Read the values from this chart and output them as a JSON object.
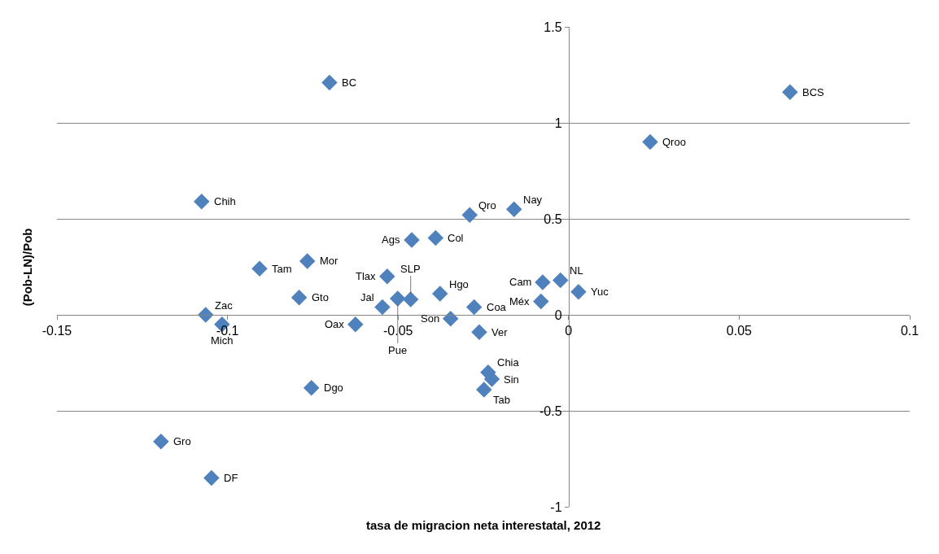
{
  "chart_data": {
    "type": "scatter",
    "xlabel": "tasa de migracion neta interestatal, 2012",
    "ylabel": "(Pob-LN)/Pob",
    "xlim": [
      -0.15,
      0.1
    ],
    "xticks": [
      -0.15,
      -0.1,
      -0.05,
      0,
      0.05,
      0.1
    ],
    "ylim": [
      -1,
      1.5
    ],
    "yticks": [
      -1,
      -0.5,
      0,
      0.5,
      1,
      1.5
    ],
    "grid": "y",
    "legend": false,
    "marker": "diamond",
    "series": [
      {
        "name": "BC",
        "color": "#4f81bd",
        "x": [
          -0.0701
        ],
        "values": [
          1.21
        ]
      },
      {
        "name": "BCS",
        "color": "#4f81bd",
        "x": [
          0.0649
        ],
        "values": [
          1.16
        ]
      },
      {
        "name": "Qroo",
        "color": "#4f81bd",
        "x": [
          0.0239
        ],
        "values": [
          0.9
        ]
      },
      {
        "name": "Chih",
        "color": "#4f81bd",
        "x": [
          -0.1076
        ],
        "values": [
          0.59
        ]
      },
      {
        "name": "Qro",
        "color": "#4f81bd",
        "x": [
          -0.029
        ],
        "values": [
          0.52
        ]
      },
      {
        "name": "Nay",
        "color": "#4f81bd",
        "x": [
          -0.016
        ],
        "values": [
          0.55
        ]
      },
      {
        "name": "Ags",
        "color": "#4f81bd",
        "x": [
          -0.046
        ],
        "values": [
          0.39
        ]
      },
      {
        "name": "Col",
        "color": "#4f81bd",
        "x": [
          -0.039
        ],
        "values": [
          0.4
        ]
      },
      {
        "name": "Mor",
        "color": "#4f81bd",
        "x": [
          -0.0766
        ],
        "values": [
          0.28
        ]
      },
      {
        "name": "Tam",
        "color": "#4f81bd",
        "x": [
          -0.0906
        ],
        "values": [
          0.24
        ]
      },
      {
        "name": "Tlax",
        "color": "#4f81bd",
        "x": [
          -0.0532
        ],
        "values": [
          0.2
        ]
      },
      {
        "name": "Cam",
        "color": "#4f81bd",
        "x": [
          -0.0076
        ],
        "values": [
          0.17
        ]
      },
      {
        "name": "NL",
        "color": "#4f81bd",
        "x": [
          -0.0024
        ],
        "values": [
          0.18
        ]
      },
      {
        "name": "Yuc",
        "color": "#4f81bd",
        "x": [
          0.0029
        ],
        "values": [
          0.12
        ]
      },
      {
        "name": "Gto",
        "color": "#4f81bd",
        "x": [
          -0.079
        ],
        "values": [
          0.09
        ]
      },
      {
        "name": "Hgo",
        "color": "#4f81bd",
        "x": [
          -0.0377
        ],
        "values": [
          0.11
        ]
      },
      {
        "name": "Pue",
        "color": "#4f81bd",
        "x": [
          -0.0501
        ],
        "values": [
          0.085
        ]
      },
      {
        "name": "SLP",
        "color": "#4f81bd",
        "x": [
          -0.0463
        ],
        "values": [
          0.08
        ]
      },
      {
        "name": "Jal",
        "color": "#4f81bd",
        "x": [
          -0.0546
        ],
        "values": [
          0.04
        ]
      },
      {
        "name": "Coa",
        "color": "#4f81bd",
        "x": [
          -0.0277
        ],
        "values": [
          0.04
        ]
      },
      {
        "name": "Méx",
        "color": "#4f81bd",
        "x": [
          -0.0081
        ],
        "values": [
          0.07
        ]
      },
      {
        "name": "Son",
        "color": "#4f81bd",
        "x": [
          -0.0346
        ],
        "values": [
          -0.02
        ]
      },
      {
        "name": "Ver",
        "color": "#4f81bd",
        "x": [
          -0.0262
        ],
        "values": [
          -0.09
        ]
      },
      {
        "name": "Oax",
        "color": "#4f81bd",
        "x": [
          -0.0625
        ],
        "values": [
          -0.05
        ]
      },
      {
        "name": "Zac",
        "color": "#4f81bd",
        "x": [
          -0.1064
        ],
        "values": [
          0.0
        ]
      },
      {
        "name": "Mich",
        "color": "#4f81bd",
        "x": [
          -0.1016
        ],
        "values": [
          -0.05
        ]
      },
      {
        "name": "Dgo",
        "color": "#4f81bd",
        "x": [
          -0.0754
        ],
        "values": [
          -0.38
        ]
      },
      {
        "name": "Chia",
        "color": "#4f81bd",
        "x": [
          -0.0236
        ],
        "values": [
          -0.3
        ]
      },
      {
        "name": "Sin",
        "color": "#4f81bd",
        "x": [
          -0.0225
        ],
        "values": [
          -0.335
        ]
      },
      {
        "name": "Tab",
        "color": "#4f81bd",
        "x": [
          -0.0248
        ],
        "values": [
          -0.39
        ]
      },
      {
        "name": "Gro",
        "color": "#4f81bd",
        "x": [
          -0.1195
        ],
        "values": [
          -0.66
        ]
      },
      {
        "name": "DF",
        "color": "#4f81bd",
        "x": [
          -0.1047
        ],
        "values": [
          -0.85
        ]
      }
    ]
  }
}
